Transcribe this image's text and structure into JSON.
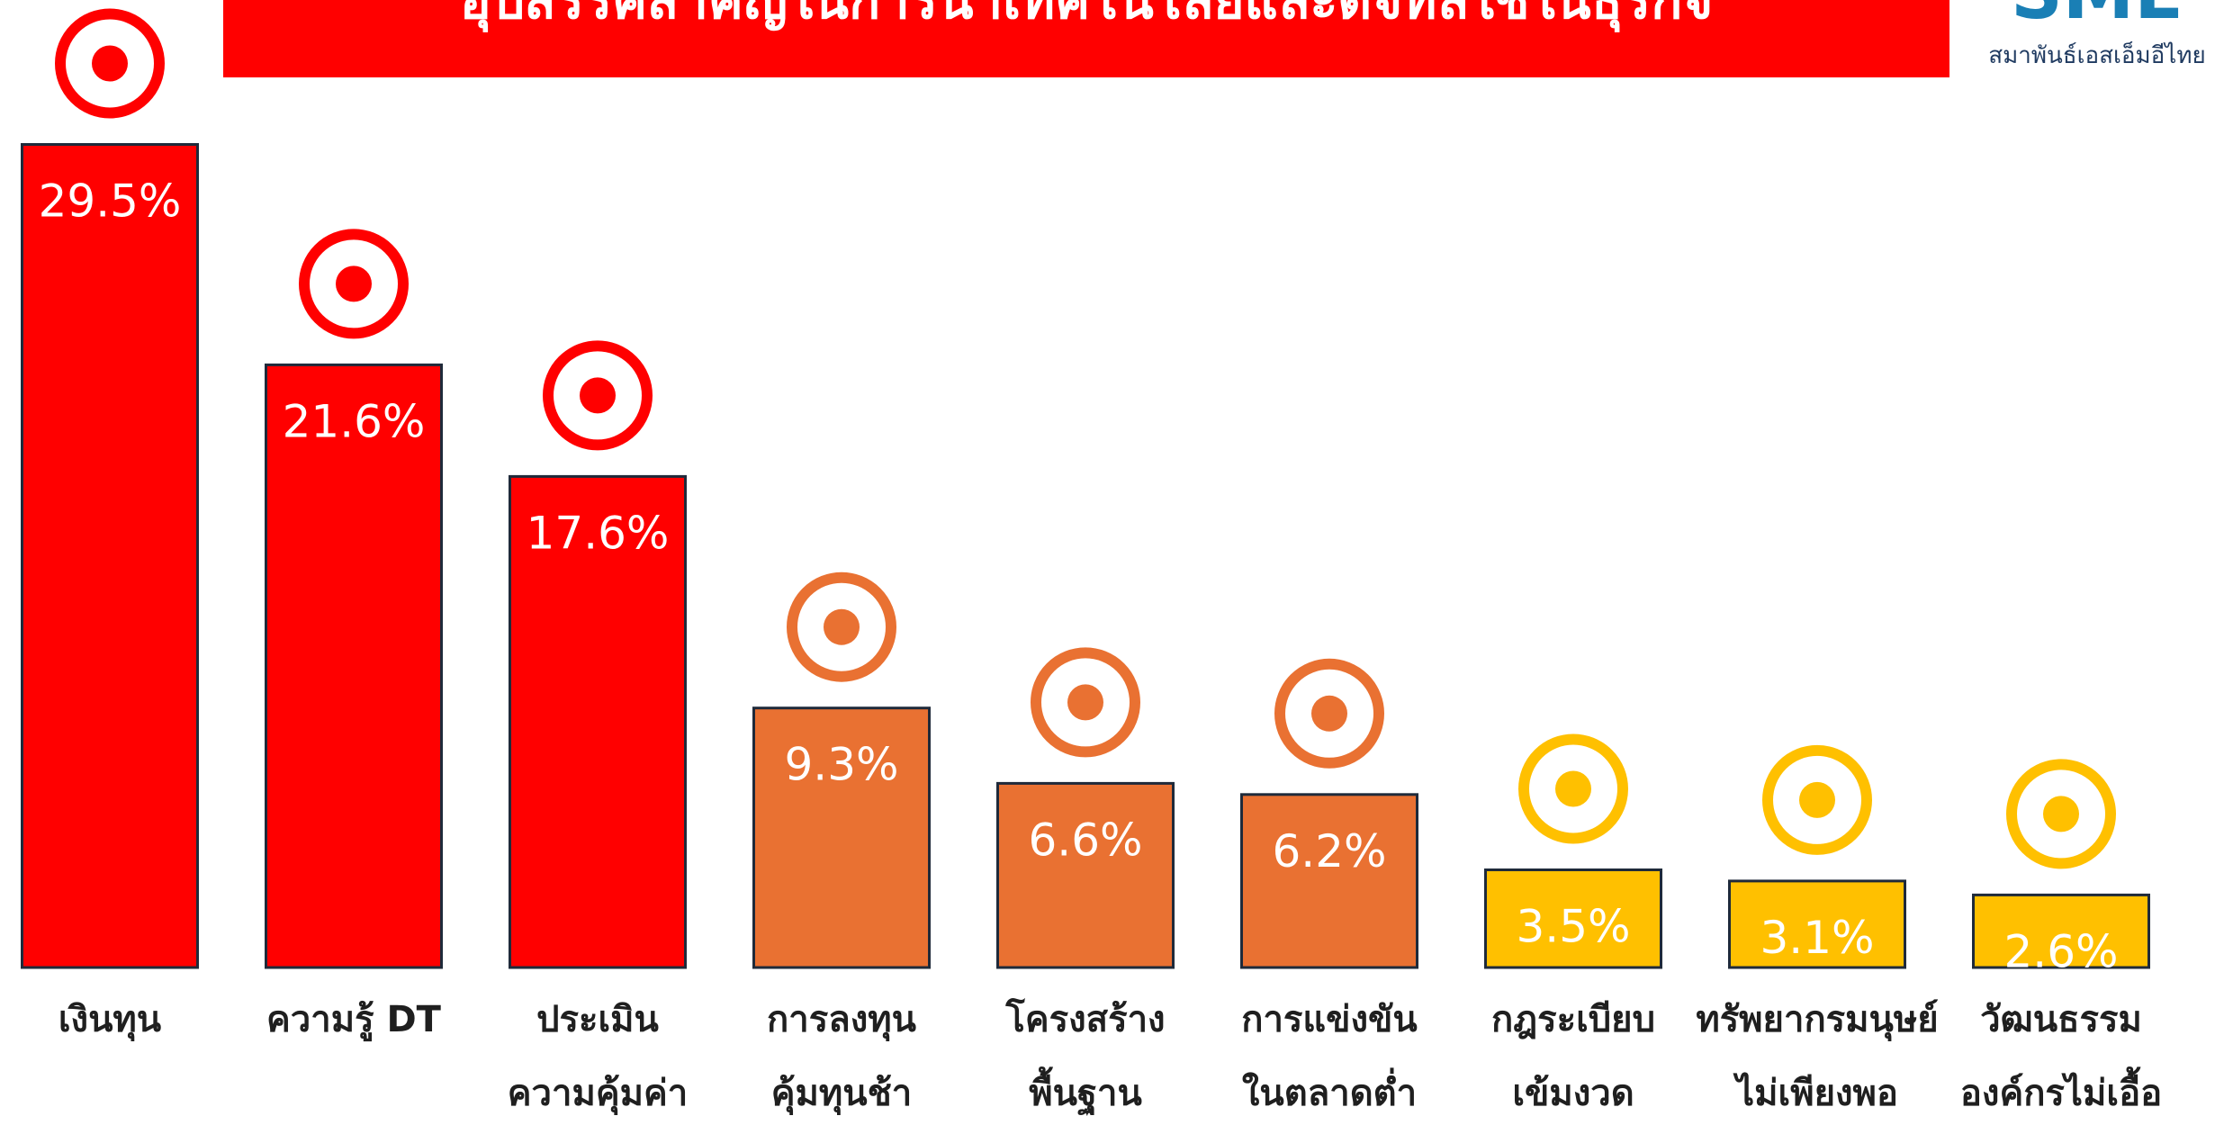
{
  "chart_data": {
    "type": "bar",
    "title": "อุปสรรคสำคัญในการนำเทคโนโลยีและดิจิทัลใช้ในธุรกิจ",
    "categories": [
      "เงินทุน",
      "ความรู้ DT",
      "ประเมิน\nความคุ้มค่า",
      "การลงทุน\nคุ้มทุนช้า",
      "โครงสร้าง\nพื้นฐาน",
      "การแข่งขัน\nในตลาดต่ำ",
      "กฎระเบียบ\nเข้มงวด",
      "ทรัพยากรมนุษย์\nไม่เพียงพอ",
      "วัฒนธรรม\nองค์กรไม่เอื้อ"
    ],
    "values": [
      29.5,
      21.6,
      17.6,
      9.3,
      6.6,
      6.2,
      3.5,
      3.1,
      2.6
    ],
    "value_labels": [
      "29.5%",
      "21.6%",
      "17.6%",
      "9.3%",
      "6.6%",
      "6.2%",
      "3.5%",
      "3.1%",
      "2.6%"
    ],
    "colors": [
      "#ff0000",
      "#ff0000",
      "#ff0000",
      "#e97132",
      "#e97132",
      "#e97132",
      "#ffc000",
      "#ffc000",
      "#ffc000"
    ]
  },
  "logo": {
    "text": "SME",
    "subtitle": "สมาพันธ์เอสเอ็มอีไทย"
  }
}
